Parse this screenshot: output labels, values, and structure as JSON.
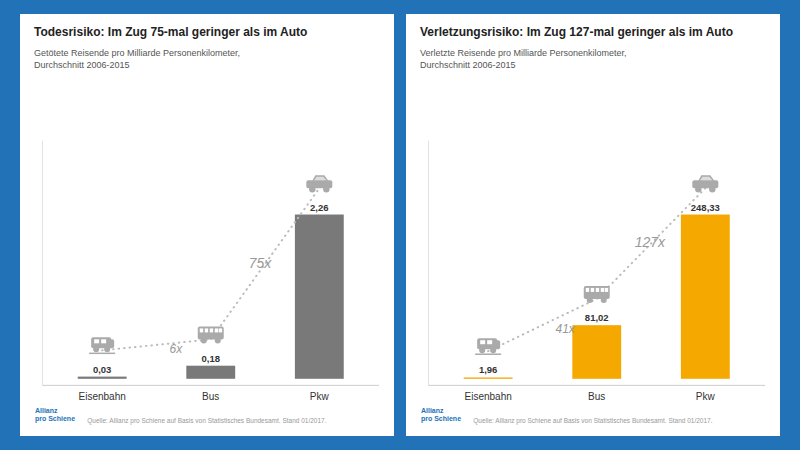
{
  "chart_data": [
    {
      "type": "bar",
      "title": "Todesrisiko: Im Zug 75-mal geringer als im Auto",
      "subtitle": "Getötete Reisende pro Milliarde Personenkilometer,\nDurchschnitt 2006-2015",
      "categories": [
        "Eisenbahn",
        "Bus",
        "Pkw"
      ],
      "values": [
        0.03,
        0.18,
        2.26
      ],
      "value_labels": [
        "0,03",
        "0,18",
        "2,26"
      ],
      "color": "#797979",
      "ylim": [
        -0.0904,
        3.277
      ],
      "tick_labels": "x",
      "data_labels": true,
      "annotations": [
        "6x",
        "75x"
      ],
      "source": "Quelle: Allianz pro Schiene auf Basis von Statistisches Bundesamt. Stand 01/2017.",
      "logo": "Allianz\npro Schiene"
    },
    {
      "type": "bar",
      "title": "Verletzungsrisiko: Im Zug 127-mal geringer als im Auto",
      "subtitle": "Verletzte Reisende pro Milliarde Personenkilometer,\nDurchschnitt 2006-2015",
      "categories": [
        "Eisenbahn",
        "Bus",
        "Pkw"
      ],
      "values": [
        1.96,
        81.02,
        248.33
      ],
      "value_labels": [
        "1,96",
        "81,02",
        "248,33"
      ],
      "color": "#F5A800",
      "ylim": [
        -9.9332,
        360.0785
      ],
      "tick_labels": "x",
      "data_labels": true,
      "annotations": [
        "41x",
        "127x"
      ],
      "source": "Quelle: Allianz pro Schiene auf Basis von Statistisches Bundesamt. Stand 01/2017.",
      "logo": "Allianz\npro Schiene"
    }
  ]
}
